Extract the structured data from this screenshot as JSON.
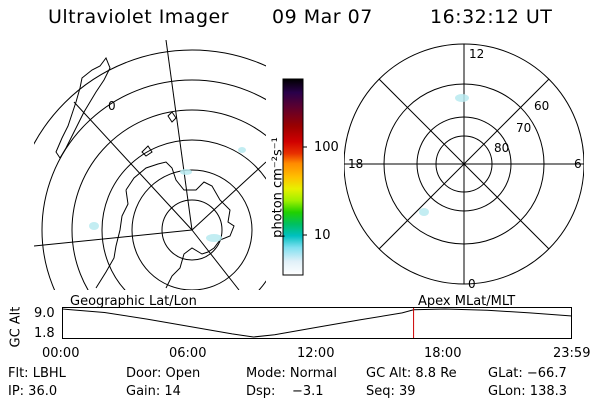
{
  "header": {
    "title": "Ultraviolet Imager",
    "date": "09 Mar 07",
    "time": "16:32:12 UT"
  },
  "colorbar": {
    "unit_label": "photon cm⁻²s⁻¹",
    "ticks": [
      "100",
      "10"
    ],
    "colors": [
      "#000000",
      "#2a004a",
      "#5a0030",
      "#9a0000",
      "#d00000",
      "#e83000",
      "#ff8a00",
      "#ffc000",
      "#e8f000",
      "#a0f000",
      "#20d000",
      "#00c060",
      "#00c0c0",
      "#80e0f0",
      "#e0f0f8",
      "#ffffff"
    ]
  },
  "left_map": {
    "label": "0"
  },
  "polar_plot": {
    "labels": {
      "top": "12",
      "bottom": "0",
      "left": "18",
      "right": "6",
      "ring_60": "60",
      "ring_70": "70",
      "ring_80": "80"
    }
  },
  "timeline": {
    "left_title": "Geographic Lat/Lon",
    "right_title": "Apex MLat/MLT",
    "y_axis_label": "GC Alt",
    "y_ticks": [
      "9.0",
      "1.8"
    ],
    "x_ticks": [
      "00:00",
      "06:00",
      "12:00",
      "18:00",
      "23:59"
    ],
    "line_color": "#000000",
    "marker_color": "#cc0000"
  },
  "chart_data": {
    "type": "line",
    "title": "",
    "xlabel": "",
    "ylabel": "GC Alt",
    "x": [
      "00:00",
      "02:00",
      "04:00",
      "06:00",
      "08:00",
      "09:00",
      "10:00",
      "12:00",
      "14:00",
      "16:00",
      "16:32",
      "18:00",
      "20:00",
      "22:00",
      "23:59"
    ],
    "series": [
      {
        "values": [
          9.0,
          8.1,
          6.4,
          4.5,
          2.6,
          1.8,
          2.4,
          4.3,
          6.2,
          8.0,
          8.8,
          9.0,
          8.7,
          8.0,
          7.2
        ]
      }
    ],
    "ylim": [
      1.8,
      9.0
    ],
    "current_marker": "16:32"
  },
  "status": {
    "flt": "Flt: LBHL",
    "door": "Door: Open",
    "mode": "Mode: Normal",
    "gc_alt": "GC Alt: 8.8 Re",
    "glat": "GLat: −66.7",
    "ip": "IP: 36.0",
    "gain": "Gain: 14",
    "dsp": "Dsp:    −3.1",
    "seq": "Seq: 39",
    "glon": "GLon: 138.3"
  }
}
